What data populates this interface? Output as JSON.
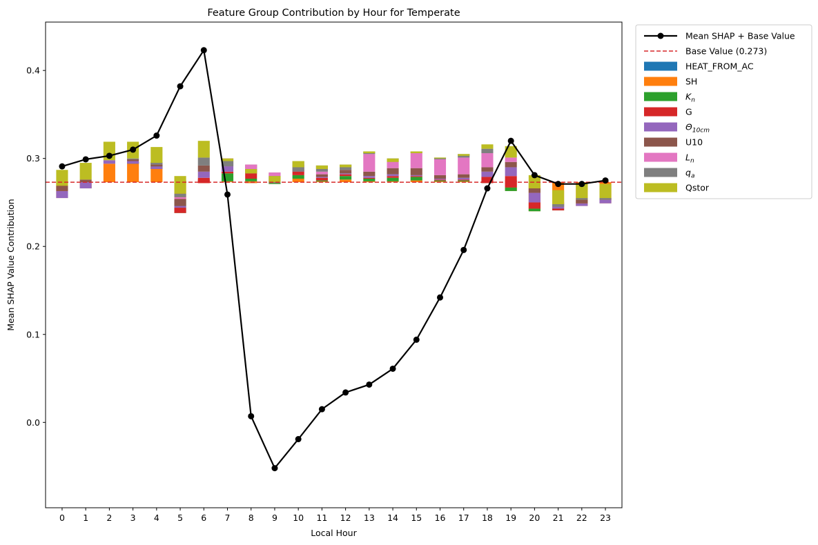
{
  "chart_data": {
    "type": "bar",
    "stacked": true,
    "title": "Feature Group Contribution by Hour for Temperate",
    "xlabel": "Local Hour",
    "ylabel": "Mean SHAP Value Contribution",
    "ylim": [
      -0.097,
      0.455
    ],
    "yticks": [
      0.0,
      0.1,
      0.2,
      0.3,
      0.4
    ],
    "ytick_labels": [
      "0.0",
      "0.1",
      "0.2",
      "0.3",
      "0.4"
    ],
    "categories": [
      "0",
      "1",
      "2",
      "3",
      "4",
      "5",
      "6",
      "7",
      "8",
      "9",
      "10",
      "11",
      "12",
      "13",
      "14",
      "15",
      "16",
      "17",
      "18",
      "19",
      "20",
      "21",
      "22",
      "23"
    ],
    "base_value": 0.273,
    "base_label": "Base Value (0.273)",
    "line_label": "Mean SHAP + Base Value",
    "line_values": [
      0.291,
      0.299,
      0.303,
      0.31,
      0.326,
      0.382,
      0.423,
      0.259,
      0.007,
      -0.052,
      -0.019,
      0.015,
      0.034,
      0.043,
      0.061,
      0.094,
      0.142,
      0.196,
      0.266,
      0.32,
      0.281,
      0.271,
      0.271,
      0.275
    ],
    "series": [
      {
        "name": "HEAT_FROM_AC",
        "color": "#1f77b4",
        "values": [
          0.0,
          0.0,
          0.0,
          0.0,
          0.0,
          0.002,
          0.003,
          0.0,
          -0.001,
          -0.001,
          0.0,
          0.0,
          0.0,
          0.0,
          0.0,
          0.0,
          0.0,
          0.0,
          0.0,
          0.002,
          0.0,
          0.0,
          0.0,
          0.0
        ]
      },
      {
        "name": "SH",
        "color": "#ff7f0e",
        "values": [
          -0.018,
          -0.007,
          0.021,
          0.023,
          0.023,
          -0.022,
          -0.004,
          0.001,
          0.002,
          -0.001,
          0.004,
          0.001,
          0.003,
          0.001,
          0.001,
          0.002,
          0.001,
          0.001,
          0.001,
          -0.012,
          -0.033,
          -0.029,
          -0.027,
          -0.024
        ]
      },
      {
        "name": "K_n",
        "color": "#2ca02c",
        "display": "K",
        "sub": "n",
        "values": [
          0.0,
          0.0,
          0.0,
          -0.002,
          -0.008,
          -0.015,
          0.0,
          0.009,
          0.003,
          0.002,
          0.004,
          0.001,
          0.004,
          0.003,
          0.004,
          0.004,
          0.001,
          0.001,
          -0.002,
          0.004,
          0.003,
          -0.003,
          0.0,
          0.0
        ]
      },
      {
        "name": "G",
        "color": "#d62728",
        "values": [
          0.0,
          0.0,
          0.0,
          0.0,
          0.0,
          0.006,
          0.006,
          0.002,
          0.01,
          0.005,
          0.008,
          0.003,
          0.002,
          0.001,
          0.002,
          0.001,
          0.001,
          0.001,
          0.007,
          0.013,
          0.007,
          0.002,
          0.0,
          0.0
        ]
      },
      {
        "name": "Theta_10cm",
        "color": "#9467bd",
        "display": "Θ",
        "sub": "10cm",
        "values": [
          0.008,
          0.007,
          0.004,
          0.003,
          0.003,
          0.002,
          0.007,
          0.012,
          0.002,
          0.002,
          0.001,
          0.001,
          0.001,
          0.002,
          0.002,
          0.001,
          0.001,
          0.002,
          0.006,
          0.01,
          0.011,
          0.004,
          0.003,
          0.004
        ]
      },
      {
        "name": "U10",
        "color": "#8c564b",
        "values": [
          0.006,
          0.003,
          0.0,
          0.002,
          0.004,
          0.008,
          0.007,
          0.003,
          0.004,
          0.004,
          0.003,
          0.003,
          0.004,
          0.005,
          0.007,
          0.008,
          0.004,
          0.004,
          0.005,
          0.006,
          0.005,
          0.003,
          0.004,
          0.002
        ]
      },
      {
        "name": "L_n",
        "color": "#e377c2",
        "display": "L",
        "sub": "n",
        "values": [
          0.0,
          0.0,
          0.0,
          0.0,
          -0.002,
          0.002,
          0.0,
          -0.009,
          -0.01,
          -0.012,
          -0.008,
          0.003,
          0.0,
          0.02,
          0.01,
          0.017,
          0.018,
          0.019,
          0.016,
          0.005,
          0.0,
          -0.005,
          0.0,
          -0.002
        ]
      },
      {
        "name": "q_a",
        "color": "#7f7f7f",
        "display": "q",
        "sub": "a",
        "values": [
          0.0,
          0.0,
          0.0,
          0.001,
          0.002,
          0.004,
          0.009,
          0.006,
          0.005,
          0.008,
          0.012,
          0.007,
          0.006,
          0.003,
          0.001,
          0.002,
          0.002,
          0.004,
          0.005,
          0.0,
          0.0,
          0.003,
          0.002,
          0.002
        ]
      },
      {
        "name": "Qstor",
        "color": "#bcbd22",
        "values": [
          0.018,
          0.019,
          0.021,
          0.019,
          0.018,
          0.02,
          0.019,
          0.003,
          -0.005,
          -0.007,
          -0.007,
          -0.004,
          -0.003,
          -0.002,
          -0.004,
          -0.002,
          -0.001,
          -0.002,
          0.005,
          0.013,
          0.015,
          0.016,
          0.016,
          0.016
        ]
      }
    ],
    "legend_position": "outside-right-top",
    "grid": false
  }
}
